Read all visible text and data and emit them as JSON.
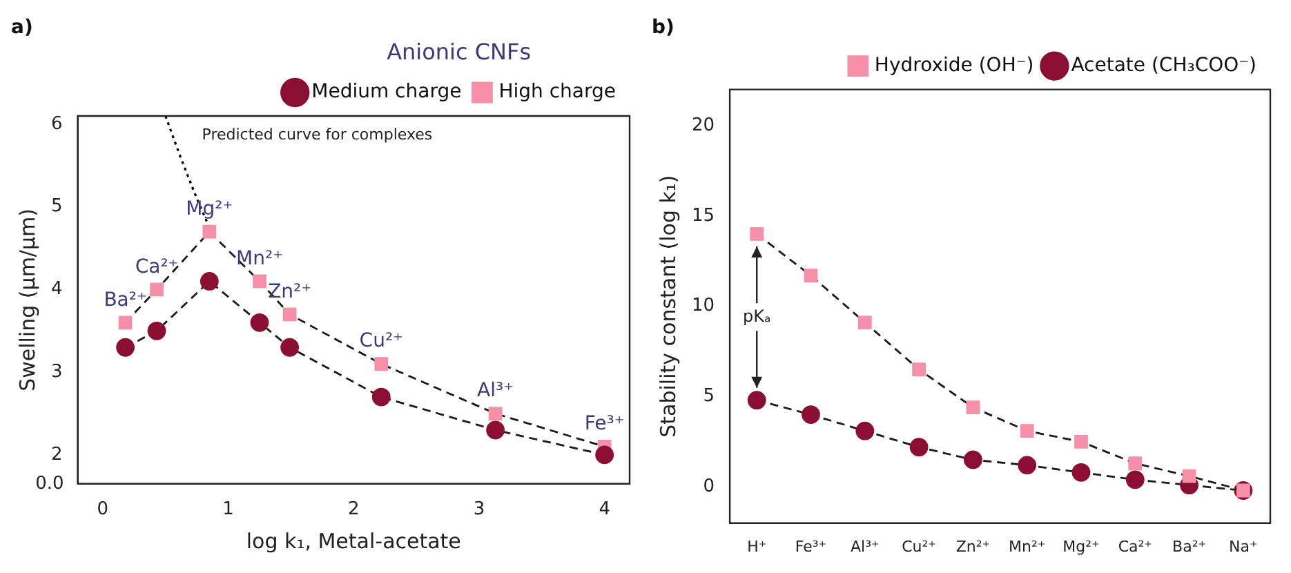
{
  "chart_data": [
    {
      "type": "line",
      "title": "a)",
      "xlabel": "log k₁, Metal-acetate",
      "ylabel": "Swelling (µm/µm)",
      "legend_title": "Anionic CNFs",
      "legend": "top right",
      "line_style": "dashed",
      "grid": false,
      "x": [
        0.18,
        0.43,
        0.85,
        1.25,
        1.49,
        2.22,
        3.13,
        4.0
      ],
      "xlim": [
        -0.2,
        4.2
      ],
      "xticks": [
        0,
        1,
        2,
        3,
        4
      ],
      "ylim": [
        1.65,
        6.1
      ],
      "yticks": [
        2,
        3,
        4,
        5,
        6
      ],
      "series": [
        {
          "name": "Medium charge",
          "color": "#8b0f32",
          "marker": "circle",
          "values": [
            3.3,
            3.5,
            4.1,
            3.6,
            3.3,
            2.7,
            2.3,
            2.0
          ]
        },
        {
          "name": "High charge",
          "color": "#f590a8",
          "marker": "square",
          "values": [
            3.6,
            4.0,
            4.7,
            4.1,
            3.7,
            3.1,
            2.5,
            2.1
          ]
        },
        {
          "type": "line",
          "color": "#000000",
          "marker": "none",
          "line_style": "dotted",
          "x": [
            0.5,
            0.62,
            0.75,
            0.85
          ],
          "values": [
            6.1,
            5.6,
            5.1,
            4.75
          ]
        }
      ],
      "annotations": [
        "Predicted curve for complexes",
        "0.0",
        {
          "text": "Ba²⁺",
          "x": 0.18,
          "y": 3.6
        },
        {
          "text": "Ca²⁺",
          "x": 0.43,
          "y": 4.0
        },
        {
          "text": "Mg²⁺",
          "x": 0.85,
          "y": 4.7
        },
        {
          "text": "Mn²⁺",
          "x": 1.25,
          "y": 4.1
        },
        {
          "text": "Zn²⁺",
          "x": 1.49,
          "y": 3.7
        },
        {
          "text": "Cu²⁺",
          "x": 2.22,
          "y": 3.1
        },
        {
          "text": "Al³⁺",
          "x": 3.13,
          "y": 2.5
        },
        {
          "text": "Fe³⁺",
          "x": 4.0,
          "y": 2.1
        }
      ]
    },
    {
      "type": "line",
      "title": "b)",
      "ylabel": "Stability constant (log k₁)",
      "legend": "top right",
      "line_style": "dashed",
      "grid": false,
      "categories": [
        "H⁺",
        "Fe³⁺",
        "Al³⁺",
        "Cu²⁺",
        "Zn²⁺",
        "Mn²⁺",
        "Mg²⁺",
        "Ca²⁺",
        "Ba²⁺",
        "Na⁺"
      ],
      "ylim": [
        -2,
        22
      ],
      "yticks": [
        0,
        5,
        10,
        15,
        20
      ],
      "series": [
        {
          "name": "Hydroxide (OH⁻)",
          "color": "#f590a8",
          "marker": "square",
          "values": [
            14.0,
            11.7,
            9.1,
            6.5,
            4.4,
            3.1,
            2.5,
            1.3,
            0.6,
            -0.2
          ]
        },
        {
          "name": "Acetate (CH₃COO⁻)",
          "color": "#8b0f32",
          "marker": "circle",
          "values": [
            4.8,
            4.0,
            3.1,
            2.2,
            1.5,
            1.2,
            0.8,
            0.4,
            0.1,
            -0.2
          ]
        }
      ],
      "annotations": [
        {
          "text": "pKₐ",
          "x": "H⁺",
          "y": 4.8
        }
      ]
    }
  ]
}
